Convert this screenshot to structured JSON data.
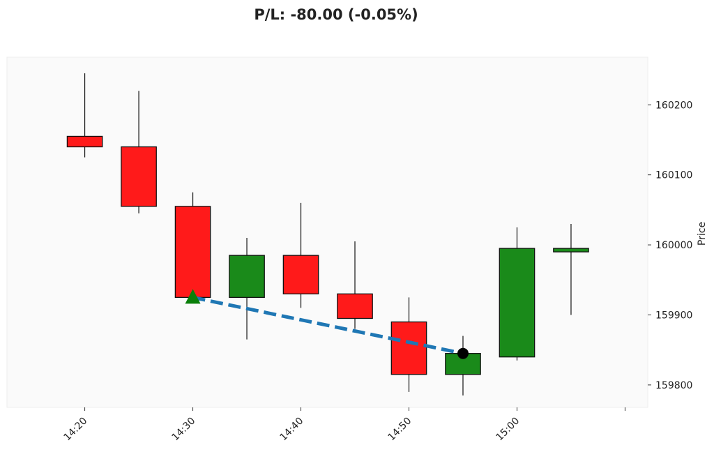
{
  "chart_data": {
    "type": "candlestick",
    "title": "P/L: -80.00 (-0.05%)",
    "xlabel": "",
    "ylabel": "Price",
    "ylim": [
      159768,
      160268
    ],
    "yticks": [
      159800,
      159900,
      160000,
      160100,
      160200
    ],
    "xticks": [
      {
        "minute": 0,
        "label": "14:20"
      },
      {
        "minute": 10,
        "label": "14:30"
      },
      {
        "minute": 20,
        "label": "14:40"
      },
      {
        "minute": 30,
        "label": "14:50"
      },
      {
        "minute": 40,
        "label": "15:00"
      },
      {
        "minute": 50,
        "label": ""
      }
    ],
    "xlim_minutes": [
      -7.2,
      52.1
    ],
    "grid": false,
    "colors": {
      "up": "#1a8a1a",
      "down": "#ff1a1a",
      "trade_line": "#1f77b4",
      "entry": "#0a7f0a",
      "exit": "#000000",
      "background": "#fafafa"
    },
    "candles": [
      {
        "time": "14:20",
        "minute": 0,
        "open": 160155,
        "high": 160245,
        "low": 160125,
        "close": 160140
      },
      {
        "time": "14:25",
        "minute": 5,
        "open": 160140,
        "high": 160220,
        "low": 160045,
        "close": 160055
      },
      {
        "time": "14:30",
        "minute": 10,
        "open": 160055,
        "high": 160075,
        "low": 159925,
        "close": 159925
      },
      {
        "time": "14:35",
        "minute": 15,
        "open": 159925,
        "high": 160010,
        "low": 159865,
        "close": 159985
      },
      {
        "time": "14:40",
        "minute": 20,
        "open": 159985,
        "high": 160060,
        "low": 159910,
        "close": 159930
      },
      {
        "time": "14:45",
        "minute": 25,
        "open": 159930,
        "high": 160005,
        "low": 159880,
        "close": 159895
      },
      {
        "time": "14:50",
        "minute": 30,
        "open": 159890,
        "high": 159925,
        "low": 159790,
        "close": 159815
      },
      {
        "time": "14:55",
        "minute": 35,
        "open": 159815,
        "high": 159870,
        "low": 159785,
        "close": 159845
      },
      {
        "time": "15:00",
        "minute": 40,
        "open": 159840,
        "high": 160025,
        "low": 159835,
        "close": 159995
      },
      {
        "time": "15:05",
        "minute": 45,
        "open": 159990,
        "high": 160030,
        "low": 159900,
        "close": 159995
      }
    ],
    "trade": {
      "entry": {
        "time": "14:30",
        "minute": 10,
        "price": 159925,
        "marker": "triangle-up"
      },
      "exit": {
        "time": "14:55",
        "minute": 35,
        "price": 159845,
        "marker": "circle"
      },
      "pl": -80.0,
      "pl_pct": -0.05
    }
  }
}
